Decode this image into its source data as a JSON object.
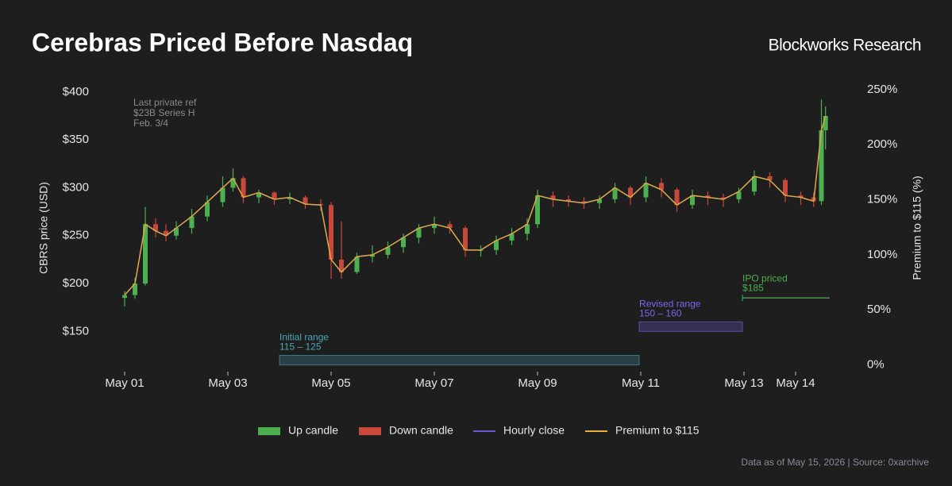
{
  "chart_data": {
    "type": "candlestick",
    "title": "Cerebras Priced Before Nasdaq",
    "brand": "Blockworks Research",
    "ylabel": "CBRS price (USD)",
    "y2label": "Premium to $115 (%)",
    "footer": "Data as of May 15, 2026 | Source: 0xarchive",
    "note": [
      "Last private ref",
      "$23B Series H",
      "Feb. 3/4"
    ],
    "xlim": [
      0.5,
      14.9
    ],
    "xticks": [
      {
        "value": 1,
        "label": "May 01"
      },
      {
        "value": 3,
        "label": "May 03"
      },
      {
        "value": 5,
        "label": "May 05"
      },
      {
        "value": 7,
        "label": "May 07"
      },
      {
        "value": 9,
        "label": "May 09"
      },
      {
        "value": 11,
        "label": "May 11"
      },
      {
        "value": 13,
        "label": "May 13"
      },
      {
        "value": 14,
        "label": "May 14"
      }
    ],
    "ylim": [
      108,
      409
    ],
    "yticks": [
      {
        "value": 150,
        "label": "$150"
      },
      {
        "value": 200,
        "label": "$200"
      },
      {
        "value": 250,
        "label": "$250"
      },
      {
        "value": 300,
        "label": "$300"
      },
      {
        "value": 350,
        "label": "$350"
      },
      {
        "value": 400,
        "label": "$400"
      }
    ],
    "y2lim": [
      -6.1,
      255.7
    ],
    "y2ticks": [
      {
        "value": 0,
        "label": "0%"
      },
      {
        "value": 50,
        "label": "50%"
      },
      {
        "value": 100,
        "label": "100%"
      },
      {
        "value": 150,
        "label": "150%"
      },
      {
        "value": 200,
        "label": "200%"
      },
      {
        "value": 250,
        "label": "250%"
      }
    ],
    "candles": {
      "x": [
        1.0,
        1.2,
        1.4,
        1.6,
        1.8,
        2.0,
        2.3,
        2.6,
        2.9,
        3.1,
        3.3,
        3.6,
        3.9,
        4.2,
        4.5,
        4.8,
        5.0,
        5.2,
        5.5,
        5.8,
        6.1,
        6.4,
        6.7,
        7.0,
        7.3,
        7.6,
        7.9,
        8.2,
        8.5,
        8.8,
        9.0,
        9.3,
        9.6,
        9.9,
        10.2,
        10.5,
        10.8,
        11.1,
        11.4,
        11.7,
        12.0,
        12.3,
        12.6,
        12.9,
        13.2,
        13.5,
        13.8,
        14.1,
        14.35,
        14.5,
        14.58
      ],
      "open": [
        185,
        188,
        200,
        262,
        255,
        250,
        258,
        270,
        285,
        300,
        310,
        290,
        295,
        288,
        290,
        283,
        282,
        225,
        212,
        228,
        230,
        238,
        248,
        258,
        262,
        258,
        235,
        235,
        245,
        252,
        262,
        292,
        288,
        286,
        284,
        288,
        300,
        290,
        305,
        298,
        282,
        292,
        290,
        288,
        296,
        312,
        308,
        292,
        290,
        286,
        360
      ],
      "high": [
        192,
        206,
        280,
        268,
        262,
        265,
        278,
        292,
        312,
        320,
        312,
        298,
        296,
        295,
        292,
        288,
        285,
        265,
        232,
        240,
        244,
        252,
        262,
        270,
        265,
        260,
        240,
        250,
        258,
        268,
        298,
        296,
        292,
        290,
        292,
        305,
        302,
        312,
        310,
        300,
        298,
        296,
        294,
        300,
        318,
        316,
        310,
        296,
        295,
        392,
        385
      ],
      "low": [
        176,
        184,
        198,
        248,
        244,
        246,
        252,
        265,
        280,
        296,
        284,
        284,
        282,
        283,
        278,
        276,
        205,
        205,
        210,
        222,
        226,
        232,
        242,
        252,
        252,
        228,
        228,
        230,
        240,
        245,
        258,
        280,
        280,
        278,
        278,
        284,
        282,
        285,
        290,
        275,
        278,
        282,
        280,
        284,
        292,
        300,
        285,
        282,
        280,
        282,
        340
      ],
      "close": [
        188,
        200,
        262,
        255,
        250,
        258,
        270,
        285,
        300,
        310,
        290,
        295,
        288,
        290,
        283,
        282,
        225,
        212,
        228,
        230,
        238,
        248,
        258,
        262,
        258,
        235,
        235,
        245,
        252,
        262,
        292,
        288,
        286,
        284,
        288,
        300,
        290,
        305,
        298,
        282,
        292,
        290,
        288,
        296,
        312,
        308,
        292,
        290,
        286,
        360,
        375
      ]
    },
    "series": [
      {
        "name": "Up candle",
        "color": "#4caf50"
      },
      {
        "name": "Down candle",
        "color": "#c9483c"
      },
      {
        "name": "Hourly close",
        "color": "#6a5acd"
      },
      {
        "name": "Premium to $115",
        "color": "#e8b23a",
        "axis": "y2",
        "values": [
          63.5,
          73.9,
          127.8,
          121.7,
          117.4,
          124.3,
          134.8,
          147.8,
          160.9,
          169.6,
          152.2,
          156.5,
          150.4,
          152.2,
          146.1,
          145.2,
          95.7,
          84.3,
          98.3,
          100,
          107.0,
          115.7,
          124.3,
          127.8,
          124.3,
          104.3,
          104.3,
          113.0,
          119.1,
          127.8,
          153.9,
          150.4,
          148.7,
          147.0,
          150.4,
          160.9,
          152.2,
          165.2,
          159.1,
          145.2,
          153.9,
          152.2,
          150.4,
          157.4,
          171.3,
          167.8,
          153.9,
          152.2,
          148.7,
          213.0,
          226.1
        ]
      }
    ],
    "ranges": [
      {
        "label": "Initial range",
        "range_label": "115 – 125",
        "low": 115,
        "high": 125,
        "start": 4.0,
        "end": 10.97,
        "color": "#4aa8b8"
      },
      {
        "label": "Revised range",
        "range_label": "150 – 160",
        "low": 150,
        "high": 160,
        "start": 10.97,
        "end": 12.97,
        "color": "#7b68ee"
      }
    ],
    "ipo": {
      "label": "IPO priced",
      "value_label": "$185",
      "value": 185,
      "start": 12.97,
      "end": 14.66,
      "color": "#4caf50"
    }
  }
}
